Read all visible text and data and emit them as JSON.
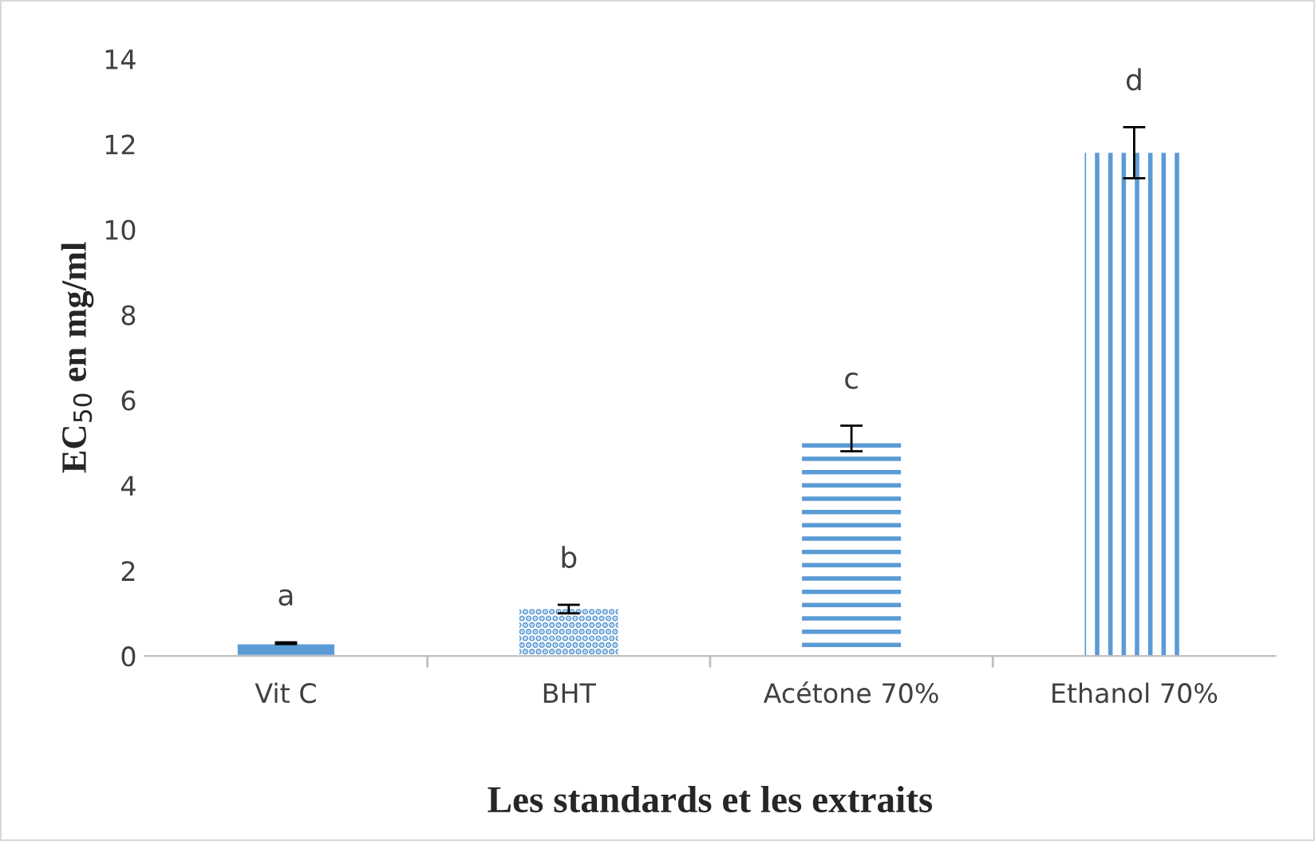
{
  "chart_data": {
    "type": "bar",
    "categories": [
      "Vit C",
      "BHT",
      "Acétone 70%",
      "Ethanol 70%"
    ],
    "values": [
      0.3,
      1.1,
      5.1,
      11.8
    ],
    "errors": [
      0.02,
      0.1,
      0.3,
      0.6
    ],
    "color": "#5b9bd5",
    "xlabel": "Les standards et les extraits",
    "ylabel": "EC$_{50}$ en mg/ml",
    "ylim": [
      0,
      14
    ],
    "yticks": [
      0,
      2,
      4,
      6,
      8,
      10,
      12,
      14
    ],
    "grid": false,
    "legend": false,
    "annotations": [
      "a",
      "b",
      "c",
      "d"
    ]
  }
}
